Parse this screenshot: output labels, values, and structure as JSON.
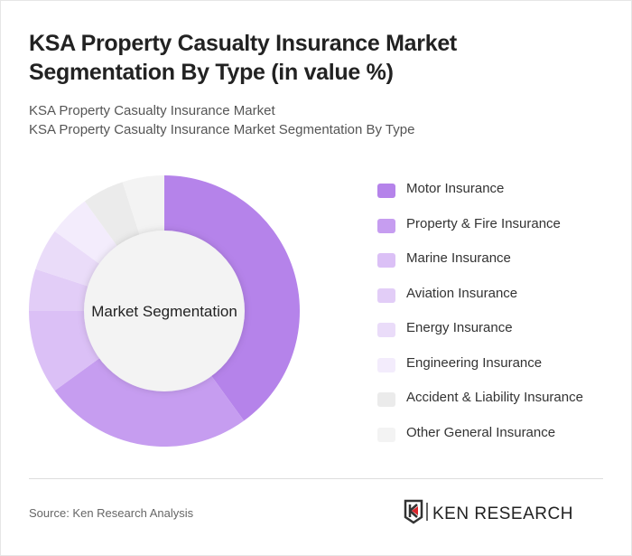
{
  "title": "KSA Property Casualty Insurance Market Segmentation By Type (in value %)",
  "subtitle1": "KSA Property Casualty Insurance Market",
  "subtitle2": "KSA Property Casualty Insurance Market Segmentation By Type",
  "source": "Source: Ken Research Analysis",
  "logo_text": "KEN RESEARCH",
  "chart_data": {
    "type": "pie",
    "variant": "donut",
    "center_label": "Market Segmentation",
    "legend_position": "right",
    "categories": [
      "Motor Insurance",
      "Property & Fire Insurance",
      "Marine Insurance",
      "Aviation Insurance",
      "Energy Insurance",
      "Engineering Insurance",
      "Accident & Liability Insurance",
      "Other General Insurance"
    ],
    "values": [
      40,
      25,
      10,
      5,
      5,
      5,
      5,
      5
    ],
    "colors": [
      "#b583ea",
      "#c69df0",
      "#dbc0f6",
      "#e2cdf7",
      "#eadcf9",
      "#f3ecfc",
      "#ebebeb",
      "#f3f3f3"
    ]
  }
}
